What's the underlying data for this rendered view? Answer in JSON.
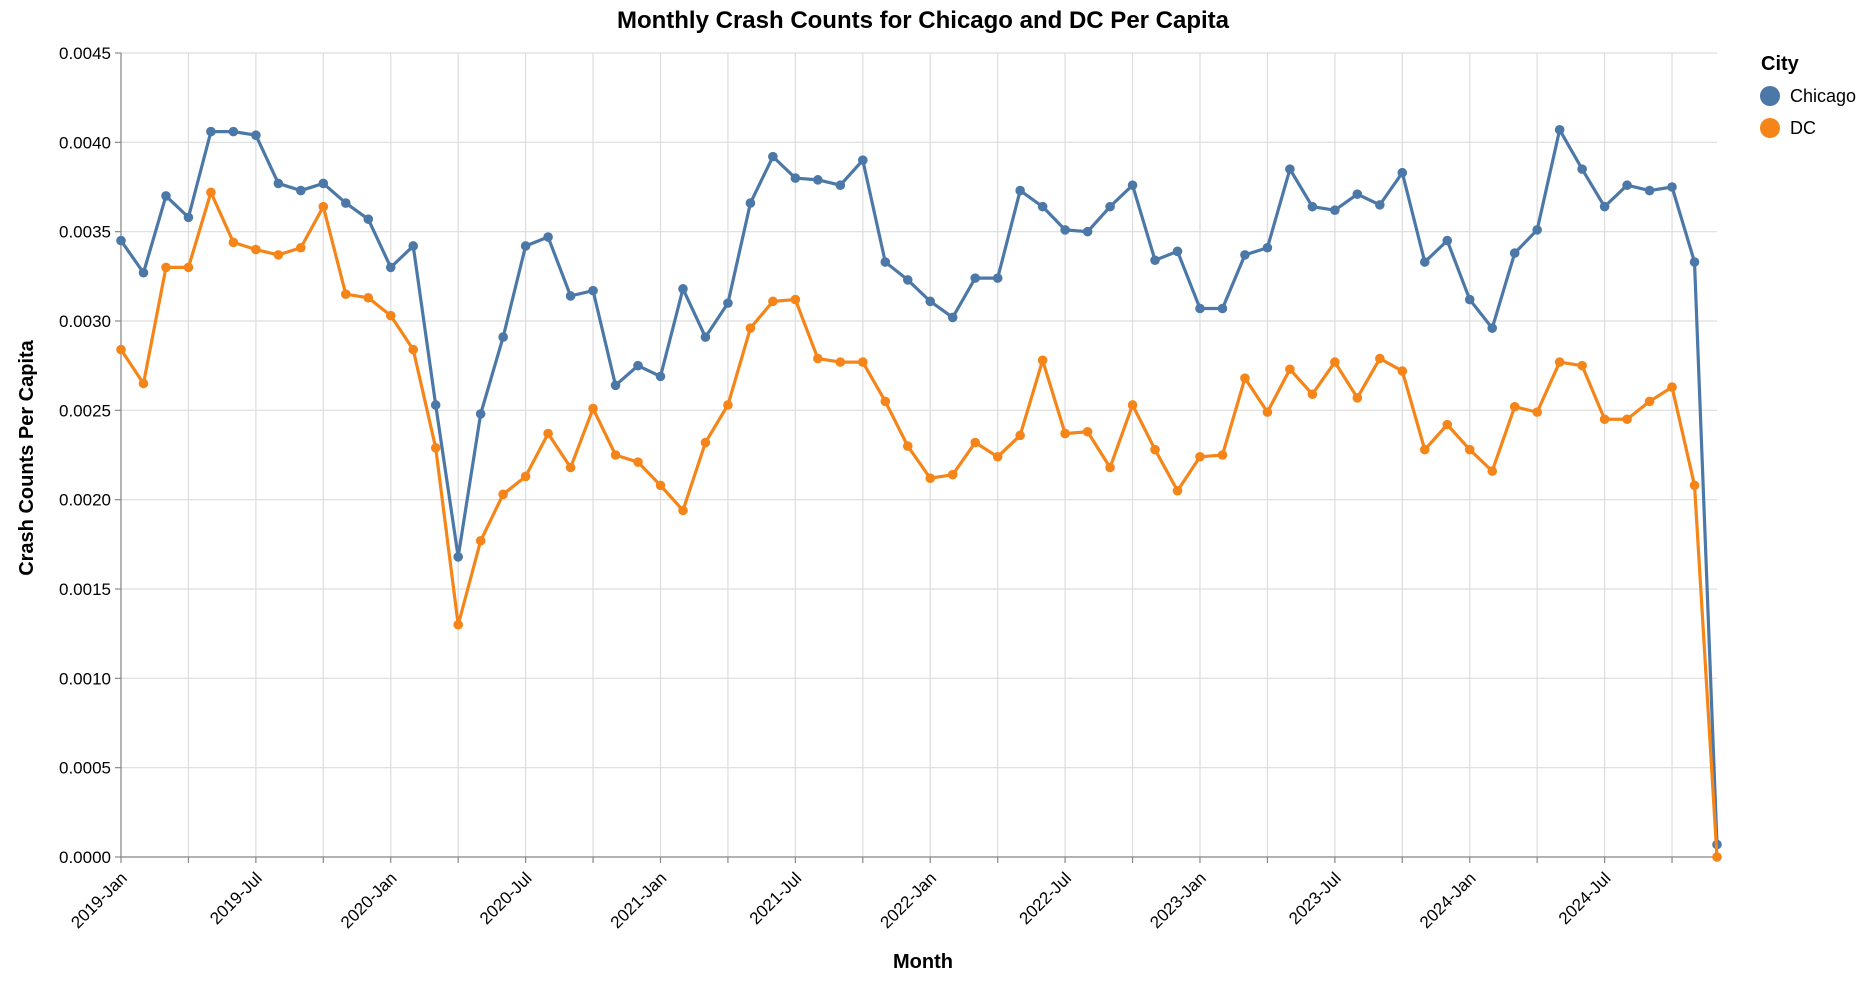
{
  "chart_data": {
    "type": "line",
    "title": "Monthly Crash Counts for Chicago and DC Per Capita",
    "xlabel": "Month",
    "ylabel": "Crash Counts Per Capita",
    "x_start": "2019-01",
    "x_ticks": [
      "2019-Jan",
      "2019-Jul",
      "2020-Jan",
      "2020-Jul",
      "2021-Jan",
      "2021-Jul",
      "2022-Jan",
      "2022-Jul",
      "2023-Jan",
      "2023-Jul",
      "2024-Jan",
      "2024-Jul"
    ],
    "y_ticks": [
      "0.0000",
      "0.0005",
      "0.0010",
      "0.0015",
      "0.0020",
      "0.0025",
      "0.0030",
      "0.0035",
      "0.0040",
      "0.0045"
    ],
    "ylim": [
      0,
      0.0045
    ],
    "xlim": [
      "2019-01",
      "2024-12"
    ],
    "grid": true,
    "legend": {
      "title": "City",
      "position": "top-right"
    },
    "series": [
      {
        "name": "Chicago",
        "color": "#4c78a8",
        "values": [
          0.00345,
          0.00327,
          0.0037,
          0.00358,
          0.00406,
          0.00406,
          0.00404,
          0.00377,
          0.00373,
          0.00377,
          0.00366,
          0.00357,
          0.0033,
          0.00342,
          0.00253,
          0.00168,
          0.00248,
          0.00291,
          0.00342,
          0.00347,
          0.00314,
          0.00317,
          0.00264,
          0.00275,
          0.00269,
          0.00318,
          0.00291,
          0.0031,
          0.00366,
          0.00392,
          0.0038,
          0.00379,
          0.00376,
          0.0039,
          0.00333,
          0.00323,
          0.00311,
          0.00302,
          0.00324,
          0.00324,
          0.00373,
          0.00364,
          0.00351,
          0.0035,
          0.00364,
          0.00376,
          0.00334,
          0.00339,
          0.00307,
          0.00307,
          0.00337,
          0.00341,
          0.00385,
          0.00364,
          0.00362,
          0.00371,
          0.00365,
          0.00383,
          0.00333,
          0.00345,
          0.00312,
          0.00296,
          0.00338,
          0.00351,
          0.00407,
          0.00385,
          0.00364,
          0.00376,
          0.00373,
          0.00375,
          0.00333,
          7e-05
        ]
      },
      {
        "name": "DC",
        "color": "#f58518",
        "values": [
          0.00284,
          0.00265,
          0.0033,
          0.0033,
          0.00372,
          0.00344,
          0.0034,
          0.00337,
          0.00341,
          0.00364,
          0.00315,
          0.00313,
          0.00303,
          0.00284,
          0.00229,
          0.0013,
          0.00177,
          0.00203,
          0.00213,
          0.00237,
          0.00218,
          0.00251,
          0.00225,
          0.00221,
          0.00208,
          0.00194,
          0.00232,
          0.00253,
          0.00296,
          0.00311,
          0.00312,
          0.00279,
          0.00277,
          0.00277,
          0.00255,
          0.0023,
          0.00212,
          0.00214,
          0.00232,
          0.00224,
          0.00236,
          0.00278,
          0.00237,
          0.00238,
          0.00218,
          0.00253,
          0.00228,
          0.00205,
          0.00224,
          0.00225,
          0.00268,
          0.00249,
          0.00273,
          0.00259,
          0.00277,
          0.00257,
          0.00279,
          0.00272,
          0.00228,
          0.00242,
          0.00228,
          0.00216,
          0.00252,
          0.00249,
          0.00277,
          0.00275,
          0.00245,
          0.00245,
          0.00255,
          0.00263,
          0.00208,
          0.0
        ]
      }
    ]
  }
}
